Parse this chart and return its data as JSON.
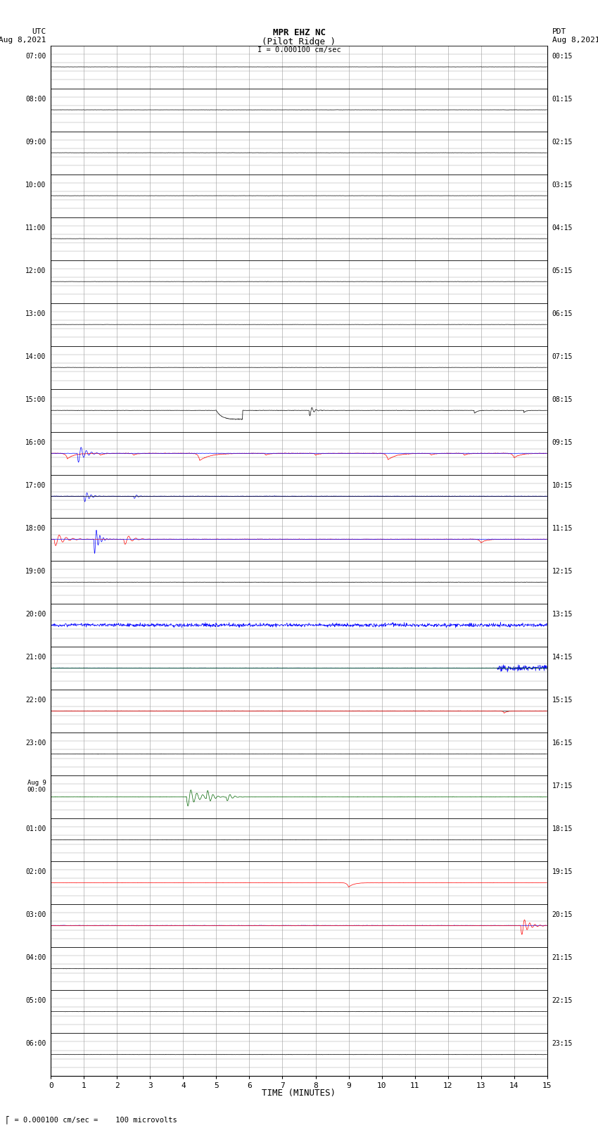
{
  "title_line1": "MPR EHZ NC",
  "title_line2": "(Pilot Ridge )",
  "title_line3": "I = 0.000100 cm/sec",
  "left_label_top": "UTC",
  "left_label_date": "Aug 8,2021",
  "right_label_top": "PDT",
  "right_label_date": "Aug 8,2021",
  "bottom_label": "TIME (MINUTES)",
  "bottom_note": " = 0.000100 cm/sec =    100 microvolts",
  "utc_labels": [
    "07:00",
    "08:00",
    "09:00",
    "10:00",
    "11:00",
    "12:00",
    "13:00",
    "14:00",
    "15:00",
    "16:00",
    "17:00",
    "18:00",
    "19:00",
    "20:00",
    "21:00",
    "22:00",
    "23:00",
    "Aug 9\n00:00",
    "01:00",
    "02:00",
    "03:00",
    "04:00",
    "05:00",
    "06:00"
  ],
  "pdt_labels": [
    "00:15",
    "01:15",
    "02:15",
    "03:15",
    "04:15",
    "05:15",
    "06:15",
    "07:15",
    "08:15",
    "09:15",
    "10:15",
    "11:15",
    "12:15",
    "13:15",
    "14:15",
    "15:15",
    "16:15",
    "17:15",
    "18:15",
    "19:15",
    "20:15",
    "21:15",
    "22:15",
    "23:15"
  ],
  "num_rows": 24,
  "fig_width": 8.5,
  "fig_height": 16.13,
  "bg_color": "#ffffff",
  "grid_color": "#999999",
  "border_color": "#000000"
}
